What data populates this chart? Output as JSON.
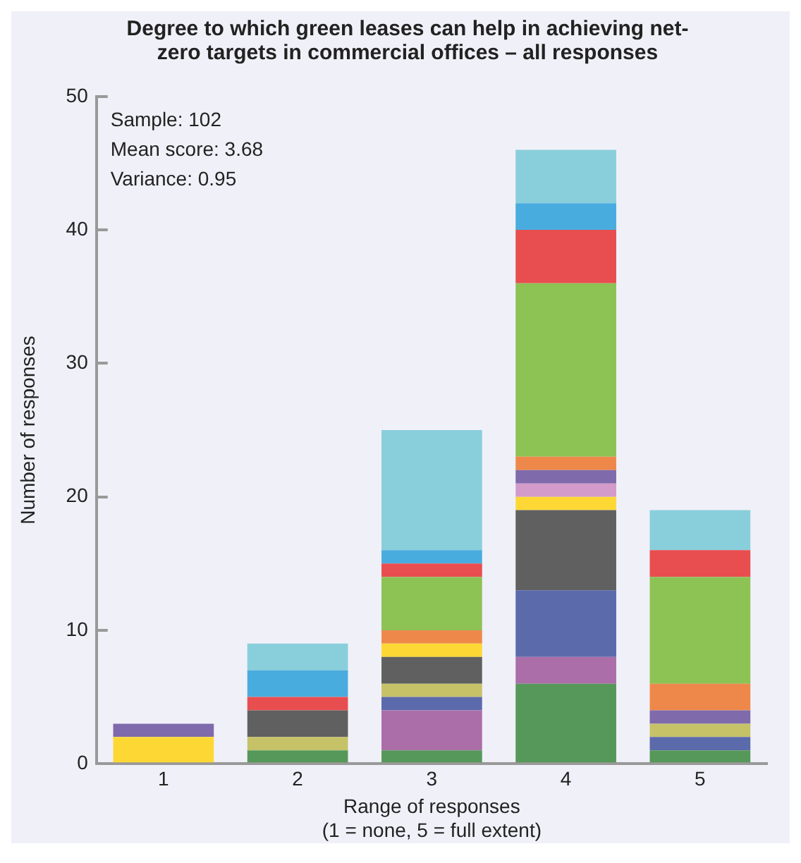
{
  "chart_data": {
    "type": "bar",
    "title": "Degree to which green leases can help in achieving net-zero targets in commercial offices – all responses",
    "xlabel": "Range of responses\n(1 = none, 5 = full extent)",
    "ylabel": "Number of responses",
    "categories": [
      "1",
      "2",
      "3",
      "4",
      "5"
    ],
    "stacked": true,
    "ylim": [
      0,
      50
    ],
    "yticks": [
      0,
      10,
      20,
      30,
      40,
      50
    ],
    "grid": false,
    "legend": false,
    "annotations": [
      "Sample: 102",
      "Mean score: 3.68",
      "Variance: 0.95"
    ],
    "series": [
      {
        "color": "#56985a",
        "values": [
          null,
          1,
          1,
          6,
          1
        ]
      },
      {
        "color": "#ab6ea9",
        "values": [
          null,
          null,
          3,
          2,
          null
        ]
      },
      {
        "color": "#5b6aab",
        "values": [
          null,
          null,
          1,
          5,
          1
        ]
      },
      {
        "color": "#c6c268",
        "values": [
          null,
          1,
          1,
          null,
          1
        ]
      },
      {
        "color": "#606060",
        "values": [
          null,
          2,
          2,
          6,
          null
        ]
      },
      {
        "color": "#fdd835",
        "values": [
          2,
          null,
          1,
          1,
          null
        ]
      },
      {
        "color": "#d39bc9",
        "values": [
          null,
          null,
          null,
          1,
          null
        ]
      },
      {
        "color": "#7f6aab",
        "values": [
          1,
          null,
          null,
          1,
          1
        ]
      },
      {
        "color": "#ee884a",
        "values": [
          null,
          null,
          1,
          1,
          2
        ]
      },
      {
        "color": "#8dc255",
        "values": [
          null,
          null,
          4,
          13,
          8
        ]
      },
      {
        "color": "#e84e4f",
        "values": [
          null,
          1,
          1,
          4,
          2
        ]
      },
      {
        "color": "#49acdf",
        "values": [
          null,
          2,
          1,
          2,
          null
        ]
      },
      {
        "color": "#89cfdb",
        "values": [
          null,
          2,
          9,
          4,
          3
        ]
      }
    ]
  }
}
